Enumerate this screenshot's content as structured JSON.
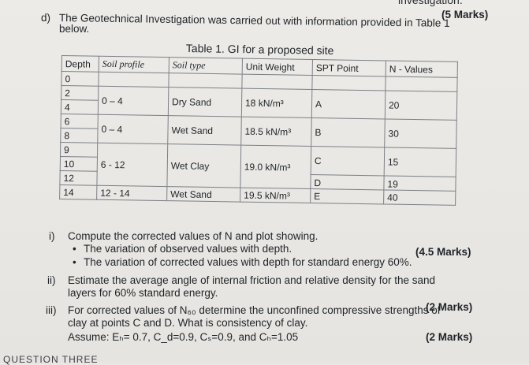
{
  "top_cut_text": "investigation.",
  "question": {
    "label": "d)",
    "text_line1": "The Geotechnical Investigation was carried out with information provided in Table 1",
    "text_line2": "below.",
    "marks": "(5 Marks)"
  },
  "table": {
    "caption": "Table 1. GI for a proposed site",
    "headers": [
      "Depth",
      "Soil profile",
      "Soil type",
      "Unit Weight",
      "SPT Point",
      "N - Values"
    ],
    "depths": [
      "0",
      "2",
      "4",
      "6",
      "8",
      "9",
      "10",
      "12",
      "14"
    ],
    "groups": [
      {
        "profile": "0 – 4",
        "type": "Dry Sand",
        "unit_weight": "18 kN/m³",
        "spt": "A",
        "n_value": "20"
      },
      {
        "profile": "0 – 4",
        "type": "Wet Sand",
        "unit_weight": "18.5 kN/m³",
        "spt": "B",
        "n_value": "30"
      },
      {
        "profile": "6 - 12",
        "type": "Wet Clay",
        "unit_weight": "19.0 kN/m³",
        "spt": "C",
        "n_value": "15"
      },
      {
        "profile": "12 - 14",
        "type": "Wet Sand",
        "unit_weight": "19.5 kN/m³",
        "spt_d": "D",
        "spt": "E",
        "n_value_top": "19",
        "n_value": "40"
      }
    ]
  },
  "parts": [
    {
      "num": "i)",
      "text": "Compute the corrected values of N and plot showing.",
      "marks": "(4.5 Marks)",
      "bullets": [
        "The variation of observed values with depth.",
        "The variation of corrected values with depth for standard energy 60%."
      ]
    },
    {
      "num": "ii)",
      "line1": "Estimate the average angle of internal friction and relative density for the sand",
      "line2": "layers for 60% standard energy.",
      "marks": "(2 Marks)"
    },
    {
      "num": "iii)",
      "line1": "For corrected values of N₆₀ determine the unconfined compressive strengths of",
      "line2": "clay at points C and D. What is consistency of clay.",
      "line3": "Assume: Eₕ= 0.7, C_d=0.9, Cₛ=0.9, and Cₕ=1.05",
      "marks": "(2 Marks)"
    }
  ],
  "bottom_cut_text": "QUESTION THREE"
}
